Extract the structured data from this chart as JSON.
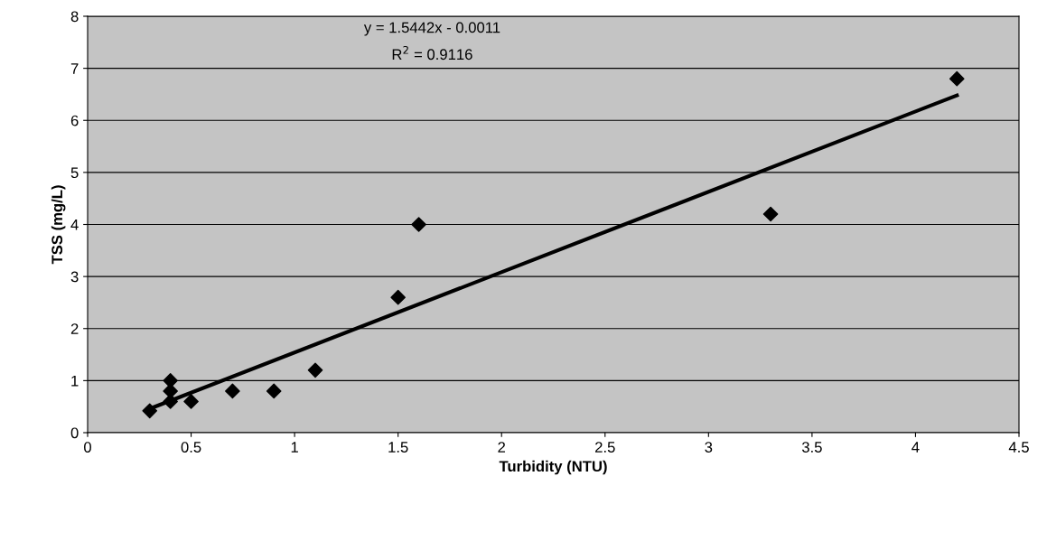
{
  "chart_data": {
    "type": "scatter",
    "xlabel": "Turbidity (NTU)",
    "ylabel": "TSS (mg/L)",
    "annotations": [
      "y = 1.5442x - 0.0011",
      "R$^{2}$ = 0.9116"
    ],
    "series": [
      {
        "color": "#000000",
        "marker": "diamond",
        "x": [
          0.3,
          0.4,
          0.4,
          0.4,
          0.5,
          0.7,
          0.9,
          1.1,
          1.5,
          1.6,
          3.3,
          4.2
        ],
        "values": [
          0.42,
          1.0,
          0.8,
          0.6,
          0.6,
          0.8,
          0.8,
          1.2,
          2.6,
          4.0,
          4.2,
          6.8
        ]
      },
      {
        "type": "line",
        "color": "#000000",
        "x": [
          0.3,
          4.2
        ],
        "values": [
          0.46,
          6.48
        ]
      }
    ],
    "xlim": [
      0,
      4.5
    ],
    "xticks": [
      0,
      0.5,
      1,
      1.5,
      2,
      2.5,
      3,
      3.5,
      4,
      4.5
    ],
    "ylim": [
      0,
      8
    ],
    "yticks": [
      0,
      1,
      2,
      3,
      4,
      5,
      6,
      7,
      8
    ],
    "grid": "y",
    "legend": false
  }
}
